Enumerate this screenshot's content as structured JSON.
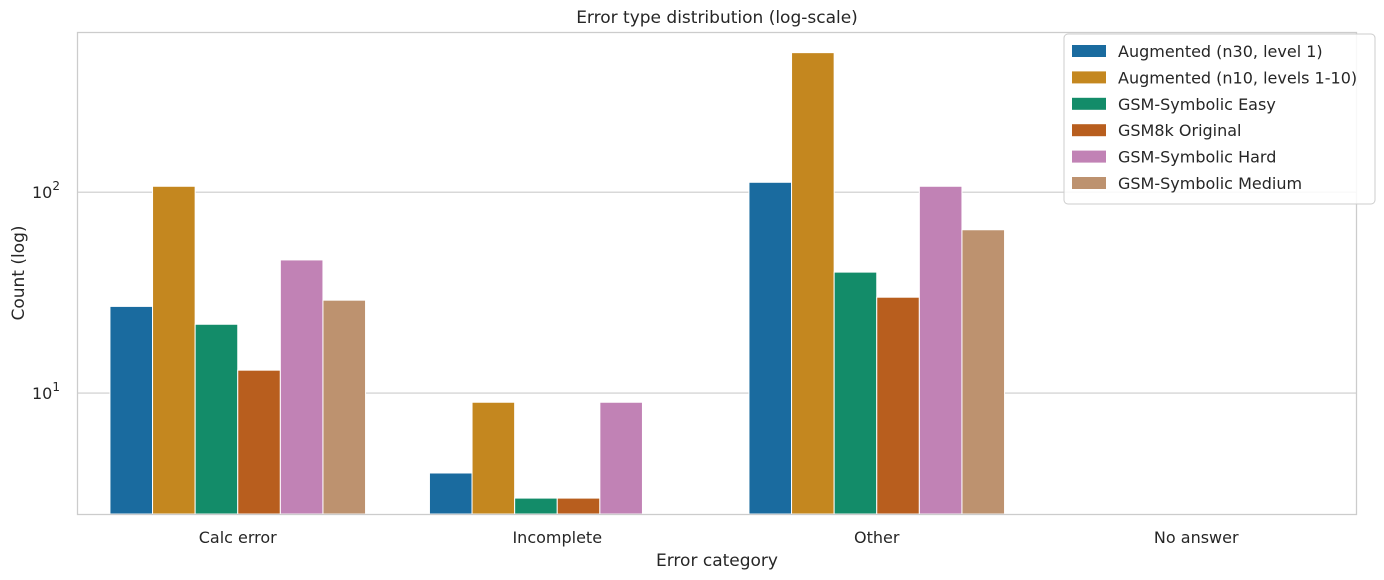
{
  "chart_data": {
    "type": "bar",
    "title": "Error type distribution (log-scale)",
    "xlabel": "Error category",
    "ylabel": "Count (log)",
    "y_scale": "log",
    "ylim": [
      2.5,
      620
    ],
    "grid": true,
    "legend_position": "top-right",
    "categories": [
      "Calc error",
      "Incomplete",
      "Other",
      "No answer"
    ],
    "y_ticks": [
      {
        "value": 10,
        "base": "10",
        "exp": "1"
      },
      {
        "value": 100,
        "base": "10",
        "exp": "2"
      }
    ],
    "series": [
      {
        "name": "Augmented (n30, level 1)",
        "color": "#1a6b9f",
        "values": [
          27,
          4,
          112,
          null
        ]
      },
      {
        "name": "Augmented (n10, levels 1-10)",
        "color": "#c4871f",
        "values": [
          107,
          9,
          495,
          null
        ]
      },
      {
        "name": "GSM-Symbolic Easy",
        "color": "#138c69",
        "values": [
          22,
          3,
          40,
          null
        ]
      },
      {
        "name": "GSM8k Original",
        "color": "#b85e1e",
        "values": [
          13,
          3,
          30,
          null
        ]
      },
      {
        "name": "GSM-Symbolic Hard",
        "color": "#c182b5",
        "values": [
          46,
          9,
          107,
          null
        ]
      },
      {
        "name": "GSM-Symbolic Medium",
        "color": "#bd926f",
        "values": [
          29,
          null,
          65,
          null
        ]
      }
    ]
  }
}
